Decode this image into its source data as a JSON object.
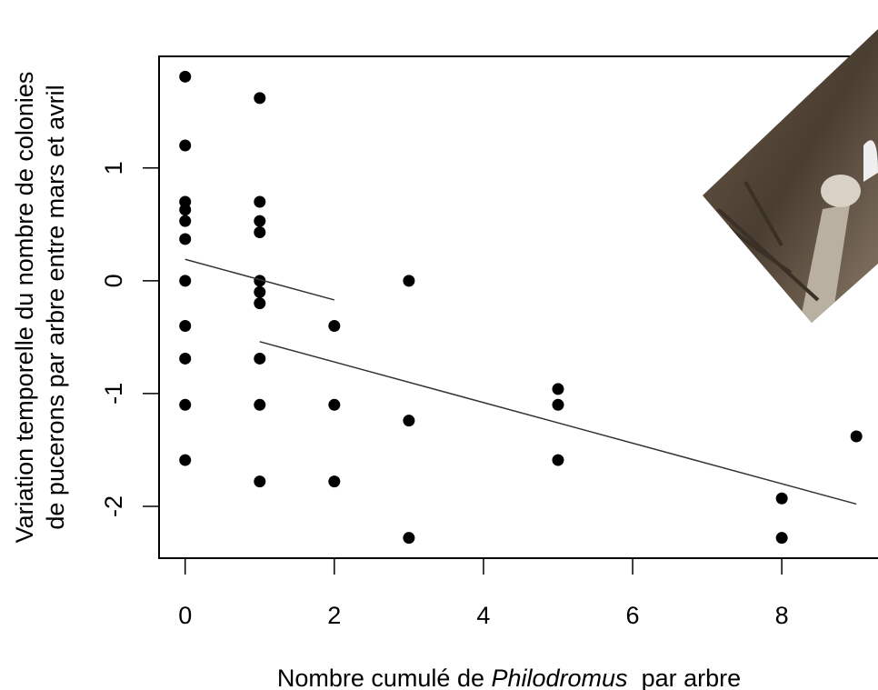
{
  "chart_data": {
    "type": "scatter",
    "y_label": [
      "Variation temporelle du nombre de colonies",
      "de pucerons par arbre entre mars et avril"
    ],
    "x_label": [
      "Nombre cumulé de ",
      "Philodromus",
      "  par arbre"
    ],
    "xlim": [
      -0.35,
      9.29
    ],
    "ylim": [
      -2.46,
      1.99
    ],
    "xticks": [
      0,
      2,
      4,
      6,
      8
    ],
    "yticks": [
      -2,
      -1,
      0,
      1
    ],
    "series": [
      {
        "color": "#000000",
        "x": [
          0,
          0,
          0,
          0,
          0,
          0,
          0,
          0,
          0,
          0,
          0,
          1,
          1,
          1,
          1,
          1,
          1,
          1,
          1,
          1,
          1,
          2,
          2,
          2,
          3,
          3,
          3,
          5,
          5,
          5,
          8,
          8,
          9
        ],
        "values": [
          1.81,
          1.2,
          0.7,
          0.63,
          0.53,
          0.37,
          0,
          -0.4,
          -0.69,
          -1.1,
          -1.59,
          1.62,
          0.7,
          0.53,
          0.43,
          0,
          -0.1,
          -0.2,
          -0.69,
          -1.1,
          -1.78,
          -0.4,
          -1.1,
          -1.78,
          0,
          -1.24,
          -2.28,
          -0.96,
          -1.1,
          -1.59,
          -1.93,
          -2.28,
          -1.38
        ]
      }
    ],
    "fit_lines": [
      {
        "color": "#333333",
        "x": [
          0,
          2
        ],
        "values": [
          0.19,
          -0.17
        ]
      },
      {
        "color": "#333333",
        "x": [
          1,
          9
        ],
        "values": [
          -0.54,
          -1.98
        ]
      }
    ]
  }
}
